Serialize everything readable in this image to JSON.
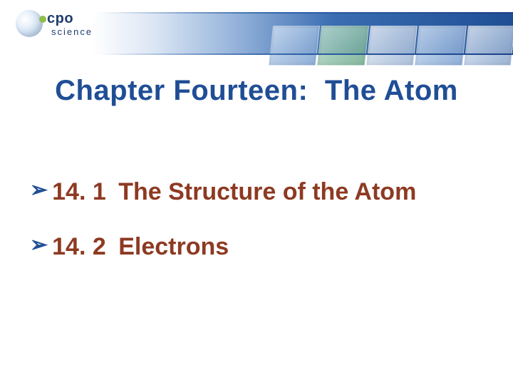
{
  "logo": {
    "brand_top": "cpo",
    "brand_bottom": "science"
  },
  "title": {
    "prefix": "Chapter Fourteen:",
    "subject": "The Atom",
    "color": "#1f4e95",
    "fontsize": 40
  },
  "bullets": [
    {
      "number": "14. 1",
      "label": "The Structure of the Atom"
    },
    {
      "number": "14. 2",
      "label": "Electrons"
    }
  ],
  "styles": {
    "bullet_arrow_color": "#1f4e95",
    "bullet_text_color": "#8d3a22",
    "bullet_fontsize": 34,
    "background": "#ffffff",
    "band_gradient_start": "#ffffff",
    "band_gradient_end": "#1f4e95"
  }
}
